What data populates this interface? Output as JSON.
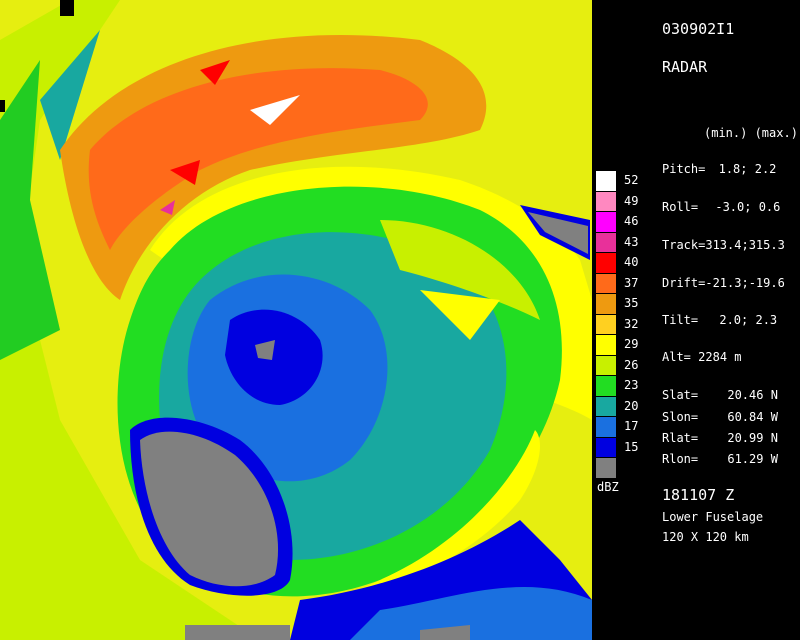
{
  "header": {
    "flight_id": "030902I1",
    "instrument": "RADAR"
  },
  "minmax_header": "(min.) (max.)",
  "params": [
    {
      "label": "Pitch=",
      "values": "1.8;   2.2"
    },
    {
      "label": "Roll=",
      "values": "-3.0;   0.6"
    },
    {
      "label": "Track=",
      "values": "313.4;315.3"
    },
    {
      "label": "Drift=",
      "values": "-21.3;-19.6"
    },
    {
      "label": "Tilt=",
      "values": "2.0;   2.3"
    },
    {
      "label": "Alt=",
      "values": "2284 m"
    }
  ],
  "positions": [
    {
      "label": "Slat=",
      "value": "20.46 N"
    },
    {
      "label": "Slon=",
      "value": "60.84 W"
    },
    {
      "label": "Rlat=",
      "value": "20.99 N"
    },
    {
      "label": "Rlon=",
      "value": "61.29 W"
    }
  ],
  "time": "181107 Z",
  "antenna": "Lower Fuselage",
  "range": "120 X 120 km",
  "legend": {
    "unit": "dBZ",
    "levels": [
      {
        "label": "52",
        "color": "#ffffff"
      },
      {
        "label": "49",
        "color": "#ff88c0"
      },
      {
        "label": "46",
        "color": "#ff00ff"
      },
      {
        "label": "43",
        "color": "#e8309a"
      },
      {
        "label": "40",
        "color": "#ff0000"
      },
      {
        "label": "37",
        "color": "#ff6a1a"
      },
      {
        "label": "35",
        "color": "#ee9a10"
      },
      {
        "label": "32",
        "color": "#ffd020"
      },
      {
        "label": "29",
        "color": "#ffff00"
      },
      {
        "label": "26",
        "color": "#c8f000"
      },
      {
        "label": "23",
        "color": "#22dd22"
      },
      {
        "label": "20",
        "color": "#18a8a0"
      },
      {
        "label": "17",
        "color": "#1a70e0"
      },
      {
        "label": "15",
        "color": "#0000e0"
      },
      {
        "label": "",
        "color": "#808080"
      }
    ]
  }
}
